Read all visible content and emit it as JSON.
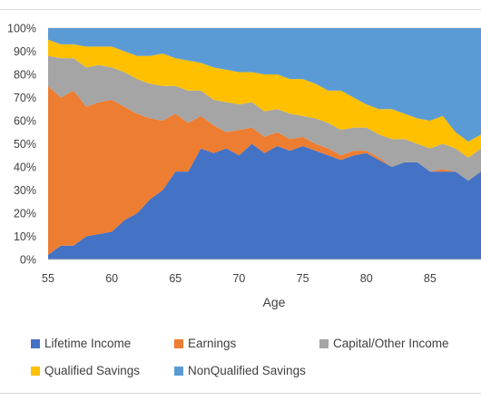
{
  "chart_data": {
    "type": "area",
    "stacking": "percent",
    "xlabel": "Age",
    "ylabel": "",
    "title": "",
    "xlim": [
      55,
      89
    ],
    "ylim": [
      0,
      100
    ],
    "x_ticks": [
      "55",
      "60",
      "65",
      "70",
      "75",
      "80",
      "85"
    ],
    "y_ticks": [
      "0%",
      "10%",
      "20%",
      "30%",
      "40%",
      "50%",
      "60%",
      "70%",
      "80%",
      "90%",
      "100%"
    ],
    "grid": "horizontal",
    "legend_position": "bottom",
    "x": [
      55,
      56,
      57,
      58,
      59,
      60,
      61,
      62,
      63,
      64,
      65,
      66,
      67,
      68,
      69,
      70,
      71,
      72,
      73,
      74,
      75,
      76,
      77,
      78,
      79,
      80,
      81,
      82,
      83,
      84,
      85,
      86,
      87,
      88,
      89
    ],
    "series": [
      {
        "name": "Lifetime Income",
        "color": "#4472C4",
        "values": [
          2,
          6,
          6,
          10,
          11,
          12,
          17,
          20,
          26,
          30,
          38,
          38,
          48,
          46,
          48,
          45,
          50,
          46,
          49,
          47,
          49,
          47,
          45,
          43,
          45,
          46,
          43,
          40,
          42,
          42,
          38,
          38,
          38,
          34,
          38
        ]
      },
      {
        "name": "Earnings",
        "color": "#ED7D31",
        "values": [
          73,
          64,
          67,
          56,
          57,
          57,
          49,
          43,
          35,
          30,
          25,
          21,
          14,
          12,
          7,
          11,
          7,
          7,
          6,
          5,
          4,
          3,
          3,
          2,
          2,
          1,
          1,
          0,
          0,
          0,
          0,
          1,
          0,
          0,
          0
        ]
      },
      {
        "name": "Capital/Other Income",
        "color": "#A5A5A5",
        "values": [
          13,
          17,
          14,
          17,
          16,
          14,
          15,
          15,
          15,
          15,
          12,
          14,
          11,
          11,
          13,
          11,
          11,
          11,
          10,
          11,
          9,
          11,
          11,
          11,
          10,
          10,
          10,
          12,
          10,
          8,
          10,
          11,
          10,
          10,
          10
        ]
      },
      {
        "name": "Qualified Savings",
        "color": "#FFC000",
        "values": [
          7,
          6,
          6,
          9,
          8,
          9,
          9,
          10,
          12,
          14,
          12,
          13,
          12,
          14,
          14,
          14,
          13,
          16,
          15,
          15,
          16,
          15,
          14,
          17,
          13,
          10,
          11,
          13,
          11,
          11,
          12,
          12,
          7,
          7,
          6
        ]
      },
      {
        "name": "NonQualified Savings",
        "color": "#5B9BD5",
        "values": [
          5,
          7,
          7,
          8,
          8,
          8,
          10,
          12,
          12,
          11,
          13,
          14,
          15,
          17,
          18,
          19,
          19,
          20,
          20,
          22,
          22,
          24,
          27,
          27,
          30,
          33,
          35,
          35,
          37,
          39,
          40,
          38,
          45,
          49,
          46
        ]
      }
    ]
  }
}
